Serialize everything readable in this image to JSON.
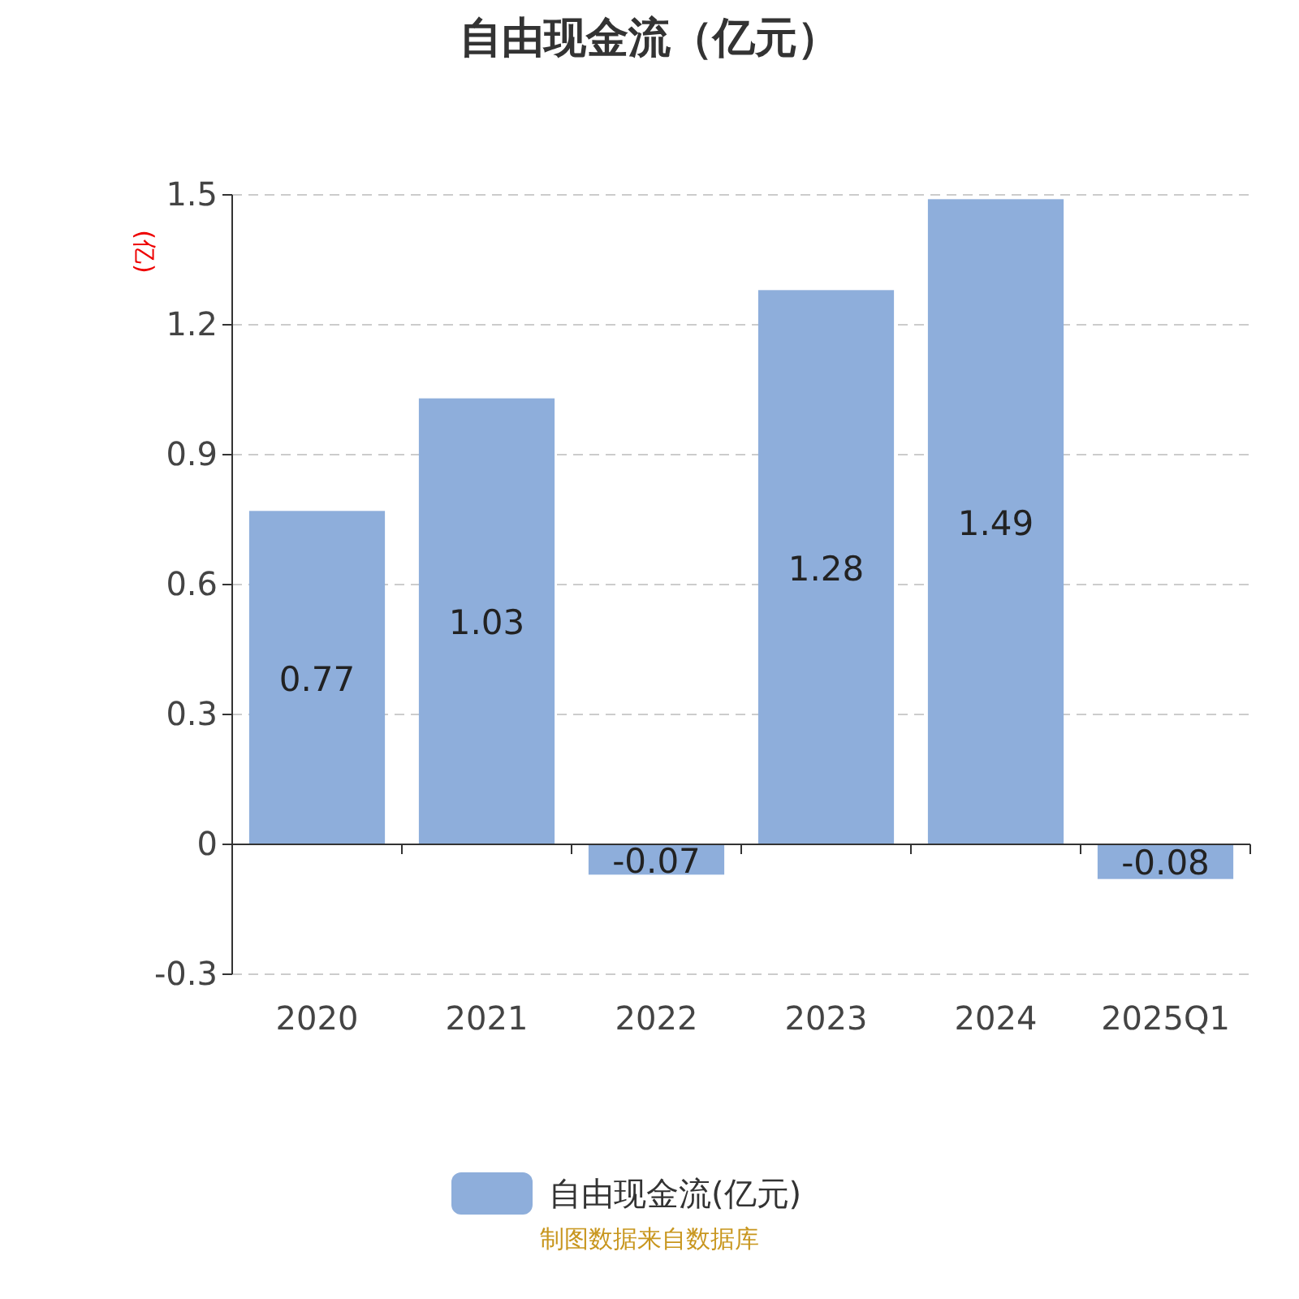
{
  "chart_data": {
    "type": "bar",
    "title": "自由现金流（亿元）",
    "ylabel": "(亿)",
    "categories": [
      "2020",
      "2021",
      "2022",
      "2023",
      "2024",
      "2025Q1"
    ],
    "series": [
      {
        "name": "自由现金流(亿元)",
        "color": "#8eaedb",
        "values": [
          0.77,
          1.03,
          -0.07,
          1.28,
          1.49,
          -0.08
        ]
      }
    ],
    "ylim": [
      -0.3,
      1.5
    ],
    "yticks": [
      -0.3,
      0,
      0.3,
      0.6,
      0.9,
      1.2,
      1.5
    ],
    "grid": "y",
    "legend": "bottom",
    "data_labels": true,
    "annotations": [
      "制图数据来自数据库"
    ]
  }
}
